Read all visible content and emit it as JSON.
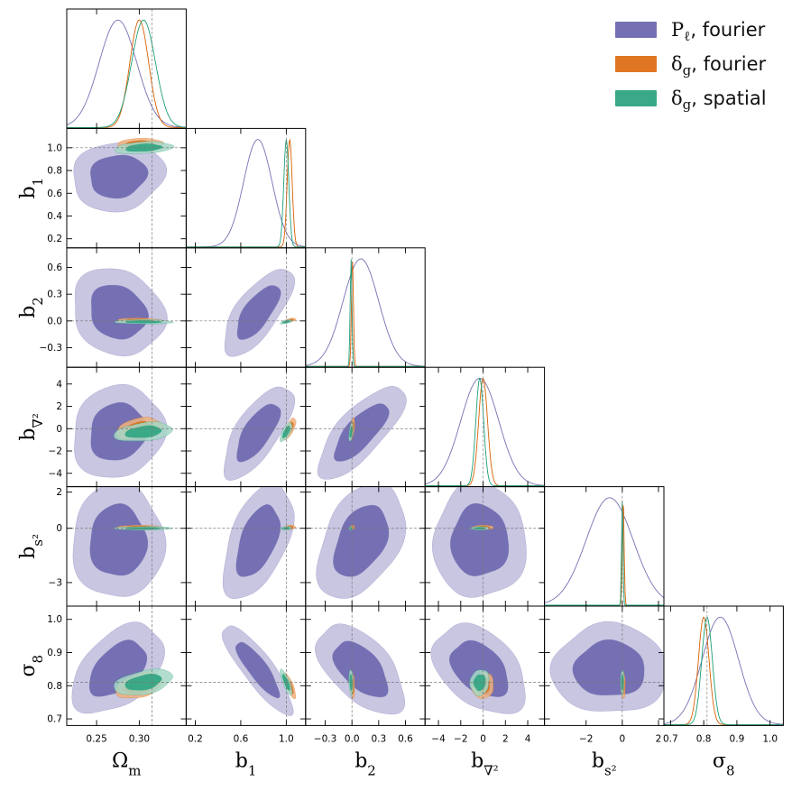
{
  "chart_data": {
    "type": "corner",
    "title": "",
    "legend_position": "top-right",
    "params": [
      {
        "key": "Om",
        "label_base": "Ω",
        "label_sub": "m",
        "range": [
          0.215,
          0.355
        ],
        "ticks": [
          0.25,
          0.3
        ],
        "tick_labels": [
          "0.25",
          "0.30"
        ],
        "truth": 0.315
      },
      {
        "key": "b1",
        "label_base": "b",
        "label_sub": "1",
        "range": [
          0.12,
          1.17
        ],
        "ticks": [
          0.2,
          0.6,
          1.0
        ],
        "tick_labels": [
          "0.2",
          "0.6",
          "1.0"
        ],
        "ticks2d": [
          0.2,
          0.4,
          0.6,
          0.8,
          1.0
        ],
        "tick_labels2d": [
          "0.2",
          "0.4",
          "0.6",
          "0.8",
          "1.0"
        ],
        "truth": 1.0
      },
      {
        "key": "b2",
        "label_base": "b",
        "label_sub": "2",
        "range": [
          -0.52,
          0.82
        ],
        "ticks": [
          -0.3,
          0.0,
          0.3,
          0.6
        ],
        "tick_labels": [
          "−0.3",
          "0.0",
          "0.3",
          "0.6"
        ],
        "ticks2d": [
          -0.3,
          0.0,
          0.3,
          0.6
        ],
        "tick_labels2d": [
          "−0.3",
          "0.0",
          "0.3",
          "0.6"
        ],
        "truth": 0.0
      },
      {
        "key": "bn",
        "label_base": "b",
        "label_sub": "∇²",
        "range": [
          -5.2,
          5.5
        ],
        "ticks": [
          -4,
          -2,
          0,
          2,
          4
        ],
        "tick_labels": [
          "−4",
          "−2",
          "0",
          "2",
          "4"
        ],
        "ticks2d": [
          -4,
          -2,
          0,
          2,
          4
        ],
        "tick_labels2d": [
          "−4",
          "−2",
          "0",
          "2",
          "4"
        ],
        "truth": 0.0
      },
      {
        "key": "bs",
        "label_base": "b",
        "label_sub": "s²",
        "range": [
          -4.3,
          2.3
        ],
        "ticks": [
          -2,
          0,
          2
        ],
        "tick_labels": [
          "−2",
          "0",
          "2"
        ],
        "ticks2d": [
          -3,
          0,
          2
        ],
        "tick_labels2d": [
          "−3",
          "0",
          "2"
        ],
        "truth": 0.0
      },
      {
        "key": "s8",
        "label_base": "σ",
        "label_sub": "8",
        "range": [
          0.68,
          1.04
        ],
        "ticks": [
          0.7,
          0.8,
          0.9,
          1.0
        ],
        "tick_labels": [
          "0.7",
          "0.8",
          "0.9",
          "1.0"
        ],
        "ticks2d": [
          0.7,
          0.8,
          0.9,
          1.0
        ],
        "tick_labels2d": [
          "0.7",
          "0.8",
          "0.9",
          "1.0"
        ],
        "truth": 0.81
      }
    ],
    "series": [
      {
        "name": "Pl_fourier",
        "label_base": "P",
        "label_sub": "ℓ",
        "label_rest": ", fourier",
        "color": "#7570b3",
        "color_2sigma": "#c8c6e1",
        "line": "#7570b3",
        "mean": [
          0.275,
          0.75,
          0.1,
          -0.3,
          -0.7,
          0.85
        ],
        "std": [
          0.022,
          0.125,
          0.2,
          1.7,
          1.3,
          0.055
        ]
      },
      {
        "name": "dg_fourier",
        "label_base": "δ",
        "label_sub": "g",
        "label_rest": ", fourier",
        "color": "#e07623",
        "color_2sigma": "#eeb07d",
        "line": "#d95f02",
        "mean": [
          0.3,
          1.03,
          0.005,
          0.0,
          0.05,
          0.8
        ],
        "std": [
          0.011,
          0.022,
          0.011,
          0.4,
          0.05,
          0.016
        ]
      },
      {
        "name": "dg_spatial",
        "label_base": "δ",
        "label_sub": "g",
        "label_rest": ", spatial",
        "color": "#3aa987",
        "color_2sigma": "#a6d7c6",
        "line": "#1b9e77",
        "mean": [
          0.305,
          1.0,
          -0.01,
          -0.3,
          0.0,
          0.81
        ],
        "std": [
          0.014,
          0.022,
          0.01,
          0.35,
          0.04,
          0.016
        ]
      }
    ],
    "correlations": [
      [
        [
          "Om",
          "b1"
        ],
        [
          0.1,
          0.2,
          0.25
        ]
      ],
      [
        [
          "Om",
          "b2"
        ],
        [
          -0.15,
          -0.1,
          -0.1
        ]
      ],
      [
        [
          "Om",
          "bn"
        ],
        [
          0.1,
          0.3,
          0.3
        ]
      ],
      [
        [
          "Om",
          "bs"
        ],
        [
          0.0,
          0.0,
          0.0
        ]
      ],
      [
        [
          "Om",
          "s8"
        ],
        [
          0.45,
          0.4,
          0.4
        ]
      ],
      [
        [
          "b1",
          "b2"
        ],
        [
          0.7,
          0.6,
          0.6
        ]
      ],
      [
        [
          "b1",
          "bn"
        ],
        [
          0.7,
          0.7,
          0.7
        ]
      ],
      [
        [
          "b1",
          "bs"
        ],
        [
          0.5,
          0.2,
          0.2
        ]
      ],
      [
        [
          "b1",
          "s8"
        ],
        [
          -0.85,
          -0.8,
          -0.8
        ]
      ],
      [
        [
          "b2",
          "bn"
        ],
        [
          0.75,
          0.5,
          0.5
        ]
      ],
      [
        [
          "b2",
          "bs"
        ],
        [
          0.4,
          0.0,
          0.0
        ]
      ],
      [
        [
          "b2",
          "s8"
        ],
        [
          -0.55,
          -0.2,
          -0.2
        ]
      ],
      [
        [
          "bn",
          "bs"
        ],
        [
          0.0,
          0.0,
          0.0
        ]
      ],
      [
        [
          "bn",
          "s8"
        ],
        [
          -0.4,
          0.1,
          0.1
        ]
      ],
      [
        [
          "bs",
          "s8"
        ],
        [
          0.0,
          0.0,
          0.0
        ]
      ]
    ]
  }
}
